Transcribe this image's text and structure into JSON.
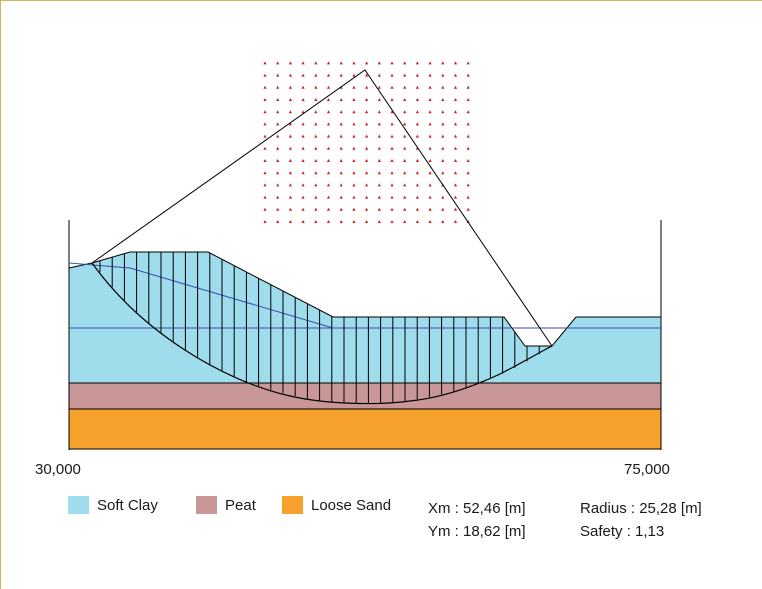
{
  "axis": {
    "x_min_label": "30,000",
    "x_max_label": "75,000"
  },
  "legend": [
    {
      "label": "Soft Clay",
      "color": "#9fdcec"
    },
    {
      "label": "Peat",
      "color": "#c99797"
    },
    {
      "label": "Loose Sand",
      "color": "#f6a12c"
    }
  ],
  "results": {
    "xm": "Xm : 52,46 [m]",
    "ym": "Ym : 18,62 [m]",
    "radius": "Radius : 25,28 [m]",
    "safety": "Safety : 1,13"
  },
  "colors": {
    "grid_points": "#cc2222",
    "water_line": "#3a4fb0",
    "frame": "#d4b45a"
  }
}
